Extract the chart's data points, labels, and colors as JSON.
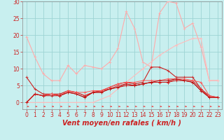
{
  "xlabel": "Vent moyen/en rafales ( km/h )",
  "xlim": [
    -0.5,
    23.5
  ],
  "ylim": [
    -2,
    30
  ],
  "yticks": [
    0,
    5,
    10,
    15,
    20,
    25,
    30
  ],
  "xticks": [
    0,
    1,
    2,
    3,
    4,
    5,
    6,
    7,
    8,
    9,
    10,
    11,
    12,
    13,
    14,
    15,
    16,
    17,
    18,
    19,
    20,
    21,
    22,
    23
  ],
  "bg_color": "#c8efef",
  "grid_color": "#9dd4d4",
  "series": [
    {
      "color": "#ffaaaa",
      "lw": 0.8,
      "marker": "+",
      "ms": 3.0,
      "data": [
        [
          0,
          19.5
        ],
        [
          1,
          13.5
        ],
        [
          2,
          8.5
        ],
        [
          3,
          6.5
        ],
        [
          4,
          6.5
        ],
        [
          5,
          11
        ],
        [
          6,
          8.5
        ],
        [
          7,
          11
        ],
        [
          8,
          10.5
        ],
        [
          9,
          10
        ],
        [
          10,
          12
        ],
        [
          11,
          16
        ],
        [
          12,
          27
        ],
        [
          13,
          22
        ],
        [
          14,
          12
        ],
        [
          15,
          10.5
        ],
        [
          16,
          26.5
        ],
        [
          17,
          30
        ],
        [
          18,
          29.5
        ],
        [
          19,
          22
        ],
        [
          20,
          23.5
        ],
        [
          21,
          16.5
        ],
        [
          22,
          6.5
        ],
        [
          23,
          6.5
        ]
      ]
    },
    {
      "color": "#ffbbbb",
      "lw": 0.8,
      "marker": "+",
      "ms": 3.0,
      "data": [
        [
          0,
          0
        ],
        [
          2,
          0
        ],
        [
          4,
          0
        ],
        [
          6,
          0
        ],
        [
          8,
          0
        ],
        [
          10,
          2
        ],
        [
          12,
          6
        ],
        [
          14,
          10
        ],
        [
          16,
          14
        ],
        [
          18,
          17
        ],
        [
          20,
          19
        ],
        [
          21,
          19
        ],
        [
          22,
          6.5
        ],
        [
          23,
          6.5
        ]
      ]
    },
    {
      "color": "#cc2222",
      "lw": 0.8,
      "marker": "+",
      "ms": 3.0,
      "data": [
        [
          0,
          7.5
        ],
        [
          1,
          4
        ],
        [
          2,
          2.5
        ],
        [
          3,
          2.5
        ],
        [
          4,
          2.5
        ],
        [
          5,
          3.5
        ],
        [
          6,
          3
        ],
        [
          7,
          2
        ],
        [
          8,
          3
        ],
        [
          9,
          3.5
        ],
        [
          10,
          4.5
        ],
        [
          11,
          5.5
        ],
        [
          12,
          6
        ],
        [
          13,
          5.5
        ],
        [
          14,
          6
        ],
        [
          15,
          10.5
        ],
        [
          16,
          10.5
        ],
        [
          17,
          9.5
        ],
        [
          18,
          7.5
        ],
        [
          19,
          7.5
        ],
        [
          20,
          7.5
        ],
        [
          21,
          4
        ],
        [
          22,
          2
        ],
        [
          23,
          1.5
        ]
      ]
    },
    {
      "color": "#dd3333",
      "lw": 0.7,
      "marker": "+",
      "ms": 2.5,
      "data": [
        [
          0,
          0
        ],
        [
          1,
          2.5
        ],
        [
          2,
          2
        ],
        [
          3,
          2.5
        ],
        [
          4,
          2
        ],
        [
          5,
          3
        ],
        [
          6,
          3
        ],
        [
          7,
          2
        ],
        [
          8,
          3
        ],
        [
          9,
          3.5
        ],
        [
          10,
          4
        ],
        [
          11,
          5
        ],
        [
          12,
          5.5
        ],
        [
          13,
          5
        ],
        [
          14,
          5.5
        ],
        [
          15,
          6
        ],
        [
          16,
          6
        ],
        [
          17,
          6
        ],
        [
          18,
          7
        ],
        [
          19,
          6.5
        ],
        [
          20,
          6.5
        ],
        [
          21,
          4
        ],
        [
          22,
          1.5
        ],
        [
          23,
          1.5
        ]
      ]
    },
    {
      "color": "#cc1111",
      "lw": 0.7,
      "marker": "+",
      "ms": 2.5,
      "data": [
        [
          0,
          0
        ],
        [
          1,
          2.5
        ],
        [
          2,
          2
        ],
        [
          3,
          2.5
        ],
        [
          4,
          2
        ],
        [
          5,
          3
        ],
        [
          6,
          2.5
        ],
        [
          7,
          1.5
        ],
        [
          8,
          3
        ],
        [
          9,
          3
        ],
        [
          10,
          4
        ],
        [
          11,
          4.5
        ],
        [
          12,
          5
        ],
        [
          13,
          5
        ],
        [
          14,
          5.5
        ],
        [
          15,
          6
        ],
        [
          16,
          6
        ],
        [
          17,
          6
        ],
        [
          18,
          6.5
        ],
        [
          19,
          6.5
        ],
        [
          20,
          6
        ],
        [
          21,
          3.5
        ],
        [
          22,
          1.5
        ],
        [
          23,
          1.5
        ]
      ]
    },
    {
      "color": "#ff5555",
      "lw": 0.7,
      "marker": "+",
      "ms": 2.5,
      "data": [
        [
          0,
          0
        ],
        [
          1,
          2.5
        ],
        [
          2,
          2
        ],
        [
          3,
          2.5
        ],
        [
          4,
          2
        ],
        [
          5,
          3.5
        ],
        [
          6,
          3
        ],
        [
          7,
          3
        ],
        [
          8,
          3.5
        ],
        [
          9,
          3.5
        ],
        [
          10,
          4.5
        ],
        [
          11,
          5.5
        ],
        [
          12,
          6
        ],
        [
          13,
          6
        ],
        [
          14,
          6.5
        ],
        [
          15,
          6.5
        ],
        [
          16,
          6.5
        ],
        [
          17,
          7
        ],
        [
          18,
          7
        ],
        [
          19,
          7
        ],
        [
          20,
          6.5
        ],
        [
          21,
          6
        ],
        [
          22,
          2
        ],
        [
          23,
          1.5
        ]
      ]
    },
    {
      "color": "#bb1111",
      "lw": 0.7,
      "marker": "+",
      "ms": 2.5,
      "data": [
        [
          0,
          0
        ],
        [
          1,
          2.5
        ],
        [
          2,
          2
        ],
        [
          3,
          2
        ],
        [
          4,
          2
        ],
        [
          5,
          3
        ],
        [
          6,
          2.5
        ],
        [
          7,
          1.5
        ],
        [
          8,
          3
        ],
        [
          9,
          3
        ],
        [
          10,
          4
        ],
        [
          11,
          4.5
        ],
        [
          12,
          5.5
        ],
        [
          13,
          5
        ],
        [
          14,
          5.5
        ],
        [
          15,
          6
        ],
        [
          16,
          6.5
        ],
        [
          17,
          6.5
        ],
        [
          18,
          7
        ],
        [
          19,
          6.5
        ],
        [
          20,
          6
        ],
        [
          21,
          3.5
        ],
        [
          22,
          1.5
        ],
        [
          23,
          1.5
        ]
      ]
    }
  ],
  "arrow_color": "#ee3333",
  "xlabel_color": "#cc2222",
  "xlabel_fontsize": 7,
  "tick_color": "#cc2222",
  "tick_fontsize": 5.5,
  "axis_color": "#888888"
}
